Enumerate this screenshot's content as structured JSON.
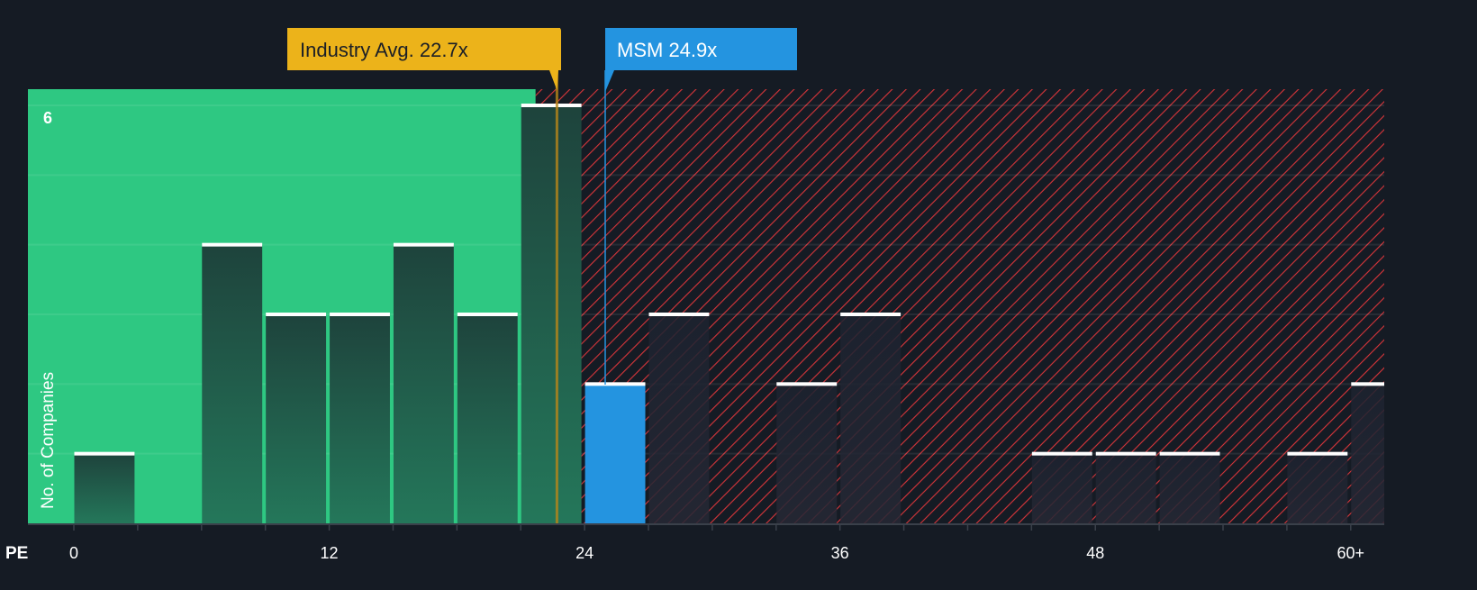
{
  "chart_data": {
    "type": "bar",
    "title": "",
    "xlabel": "PE",
    "ylabel": "No. of Companies",
    "bin_width": 3,
    "bins_start": [
      0,
      3,
      6,
      9,
      12,
      15,
      18,
      21,
      24,
      27,
      30,
      33,
      36,
      39,
      42,
      45,
      48,
      51,
      54,
      57,
      60
    ],
    "values": [
      1,
      0,
      4,
      3,
      3,
      4,
      3,
      6,
      2,
      3,
      0,
      2,
      3,
      0,
      0,
      1,
      1,
      1,
      0,
      1,
      2
    ],
    "highlight_bin_start": 24,
    "x_ticks": [
      "0",
      "12",
      "24",
      "36",
      "48",
      "60+"
    ],
    "x_tick_values": [
      0,
      12,
      24,
      36,
      48,
      60
    ],
    "y_ticks": [
      "6"
    ],
    "y_tick_values": [
      6
    ],
    "ylim": [
      0,
      6.2
    ],
    "xlim": [
      -2.2,
      61.5
    ],
    "fair_zone_end": 21.7,
    "industry_avg": {
      "label": "Industry Avg. 22.7x",
      "value": 22.7
    },
    "company": {
      "label": "MSM 24.9x",
      "value": 24.9
    },
    "colors": {
      "background": "#151b24",
      "good": "#2ec882",
      "bad": "#e03a3e",
      "industry": "#ecb31a",
      "company": "#2494e0"
    }
  }
}
